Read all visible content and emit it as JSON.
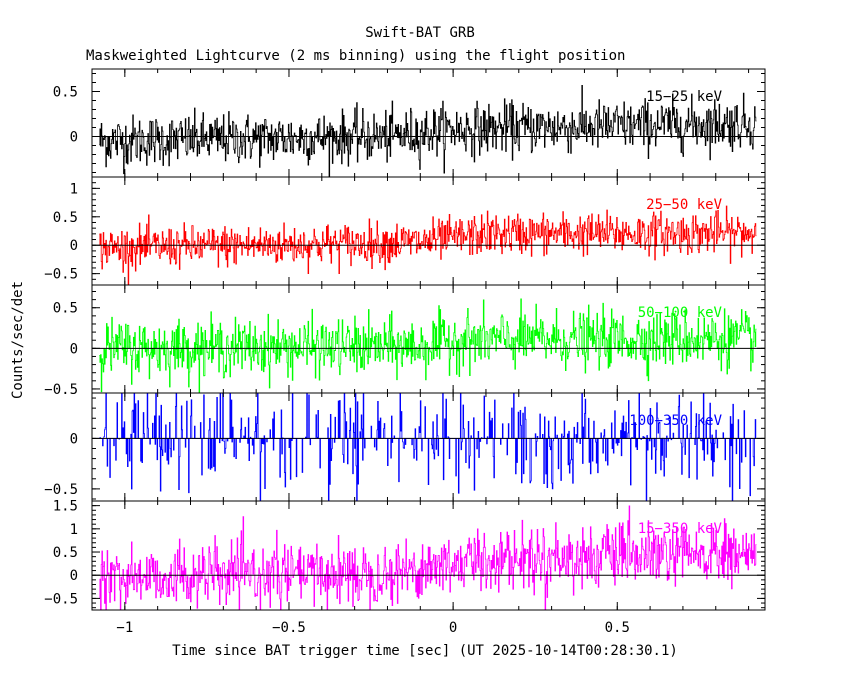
{
  "chart_data": {
    "type": "line",
    "title": "Swift-BAT GRB",
    "subtitle": "Maskweighted Lightcurve (2 ms binning) using the flight position",
    "xlabel": "Time since BAT trigger time [sec] (UT 2025-10-14T00:28:30.1)",
    "ylabel": "Counts/sec/det",
    "xlim": [
      -1.1,
      0.95
    ],
    "x_ticks": [
      -1,
      -0.5,
      0,
      0.5
    ],
    "x_tick_labels": [
      "−1",
      "−0.5",
      "0",
      "0.5"
    ],
    "bin_width_sec": 0.002,
    "x_data_range": [
      -1.078,
      0.924
    ],
    "panels": [
      {
        "name": "15−25 keV",
        "color": "#000000",
        "ylim": [
          -0.45,
          0.75
        ],
        "y_ticks": [
          0,
          0.5
        ],
        "y_tick_labels": [
          "0",
          "0.5"
        ],
        "baseline": [
          [
            -1.08,
            -0.05
          ],
          [
            -0.2,
            0.0
          ],
          [
            0.0,
            0.08
          ],
          [
            0.92,
            0.15
          ]
        ],
        "noise_sigma": 0.14
      },
      {
        "name": "25−50 keV",
        "color": "#ff0000",
        "ylim": [
          -0.7,
          1.2
        ],
        "y_ticks": [
          -0.5,
          0,
          0.5,
          1
        ],
        "y_tick_labels": [
          "−0.5",
          "0",
          "0.5",
          "1"
        ],
        "baseline": [
          [
            -1.08,
            -0.05
          ],
          [
            -0.1,
            0.05
          ],
          [
            0.1,
            0.2
          ],
          [
            0.92,
            0.22
          ]
        ],
        "noise_sigma": 0.18
      },
      {
        "name": "50−100 keV",
        "color": "#00ff00",
        "ylim": [
          -0.55,
          0.78
        ],
        "y_ticks": [
          -0.5,
          0,
          0.5
        ],
        "y_tick_labels": [
          "−0.5",
          "0",
          "0.5"
        ],
        "baseline": [
          [
            -1.08,
            0.0
          ],
          [
            -0.1,
            0.02
          ],
          [
            0.0,
            0.1
          ],
          [
            0.92,
            0.12
          ]
        ],
        "noise_sigma": 0.17
      },
      {
        "name": "100−350 keV",
        "color": "#0000ff",
        "ylim": [
          -0.62,
          0.45
        ],
        "y_ticks": [
          -0.5,
          0
        ],
        "y_tick_labels": [
          "−0.5",
          "0"
        ],
        "baseline": [
          [
            -1.08,
            0.0
          ],
          [
            0.92,
            0.0
          ]
        ],
        "noise_sigma": 0.18,
        "sparse": true
      },
      {
        "name": "15−350 keV",
        "color": "#ff00ff",
        "ylim": [
          -0.75,
          1.6
        ],
        "y_ticks": [
          -0.5,
          0,
          0.5,
          1,
          1.5
        ],
        "y_tick_labels": [
          "−0.5",
          "0",
          "0.5",
          "1",
          "1.5"
        ],
        "baseline": [
          [
            -1.08,
            -0.05
          ],
          [
            -0.2,
            0.05
          ],
          [
            0.1,
            0.35
          ],
          [
            0.92,
            0.45
          ]
        ],
        "noise_sigma": 0.33
      }
    ],
    "zero_line": true,
    "grid": false
  }
}
